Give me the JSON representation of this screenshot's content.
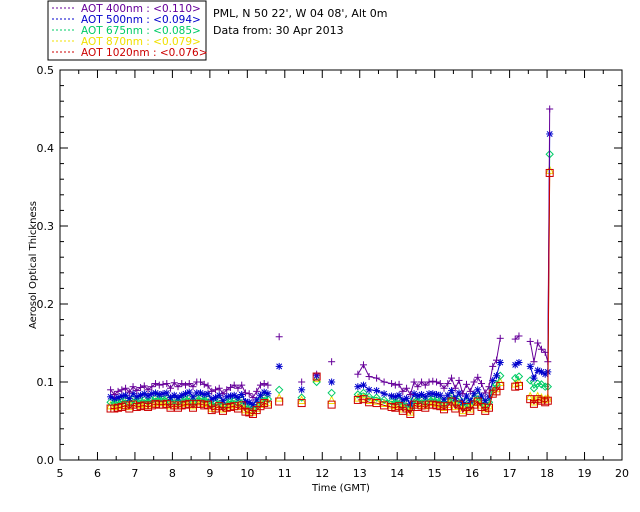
{
  "info": {
    "location": "PML, N 50 22', W 04 08', Alt 0m",
    "date": "Data from: 30 Apr 2013"
  },
  "chart_data": {
    "type": "line",
    "xlabel": "Time (GMT)",
    "ylabel": "Aerosol Optical Thickness",
    "xlim": [
      5,
      20
    ],
    "ylim": [
      0,
      0.5
    ],
    "x_ticks": [
      5,
      6,
      7,
      8,
      9,
      10,
      11,
      12,
      13,
      14,
      15,
      16,
      17,
      18,
      19,
      20
    ],
    "y_ticks": [
      0.0,
      0.1,
      0.2,
      0.3,
      0.4,
      0.5
    ],
    "y_tick_labels": [
      "0.0",
      "0.1",
      "0.2",
      "0.3",
      "0.4",
      "0.5"
    ],
    "grid": false,
    "legend_position": "top-left, outside plot",
    "x": [
      6.35,
      6.45,
      6.55,
      6.65,
      6.75,
      6.85,
      6.95,
      7.05,
      7.15,
      7.25,
      7.35,
      7.45,
      7.55,
      7.65,
      7.75,
      7.85,
      7.95,
      8.05,
      8.15,
      8.25,
      8.35,
      8.45,
      8.55,
      8.65,
      8.75,
      8.85,
      8.95,
      9.05,
      9.15,
      9.25,
      9.35,
      9.45,
      9.55,
      9.65,
      9.75,
      9.85,
      9.95,
      10.05,
      10.15,
      10.25,
      10.35,
      10.45,
      10.55,
      10.85,
      11.45,
      11.85,
      12.25,
      12.95,
      13.1,
      13.25,
      13.45,
      13.65,
      13.85,
      13.95,
      14.05,
      14.15,
      14.25,
      14.35,
      14.45,
      14.55,
      14.65,
      14.75,
      14.85,
      14.95,
      15.05,
      15.15,
      15.25,
      15.35,
      15.45,
      15.55,
      15.65,
      15.75,
      15.85,
      15.95,
      16.05,
      16.15,
      16.25,
      16.35,
      16.45,
      16.55,
      16.65,
      16.75,
      17.15,
      17.25,
      17.55,
      17.65,
      17.75,
      17.85,
      17.95,
      18.02,
      18.07
    ],
    "series": [
      {
        "name": "AOT  400nm : <0.110>",
        "color": "#66009a",
        "marker": "plus",
        "values": [
          0.09,
          0.084,
          0.088,
          0.09,
          0.092,
          0.087,
          0.094,
          0.089,
          0.093,
          0.095,
          0.09,
          0.094,
          0.098,
          0.096,
          0.097,
          0.098,
          0.092,
          0.099,
          0.094,
          0.098,
          0.096,
          0.098,
          0.094,
          0.1,
          0.1,
          0.097,
          0.095,
          0.088,
          0.09,
          0.092,
          0.085,
          0.09,
          0.093,
          0.096,
          0.092,
          0.096,
          0.086,
          0.085,
          0.08,
          0.088,
          0.096,
          0.098,
          0.096,
          0.158,
          0.1,
          0.11,
          0.126,
          0.11,
          0.122,
          0.107,
          0.105,
          0.1,
          0.098,
          0.096,
          0.097,
          0.088,
          0.092,
          0.084,
          0.1,
          0.094,
          0.1,
          0.096,
          0.1,
          0.101,
          0.1,
          0.098,
          0.092,
          0.098,
          0.105,
          0.092,
          0.102,
          0.085,
          0.097,
          0.088,
          0.1,
          0.106,
          0.098,
          0.086,
          0.094,
          0.12,
          0.128,
          0.156,
          0.155,
          0.159,
          0.152,
          0.126,
          0.15,
          0.142,
          0.138,
          0.126,
          0.45
        ]
      },
      {
        "name": "AOT  500nm : <0.094>",
        "color": "#0000cc",
        "marker": "asterisk",
        "values": [
          0.081,
          0.079,
          0.08,
          0.082,
          0.083,
          0.079,
          0.085,
          0.081,
          0.083,
          0.085,
          0.082,
          0.085,
          0.086,
          0.084,
          0.085,
          0.086,
          0.08,
          0.083,
          0.08,
          0.083,
          0.085,
          0.087,
          0.081,
          0.086,
          0.086,
          0.084,
          0.085,
          0.078,
          0.08,
          0.083,
          0.076,
          0.081,
          0.082,
          0.083,
          0.08,
          0.084,
          0.075,
          0.074,
          0.071,
          0.077,
          0.083,
          0.087,
          0.085,
          0.12,
          0.09,
          0.108,
          0.1,
          0.094,
          0.096,
          0.09,
          0.089,
          0.085,
          0.082,
          0.081,
          0.083,
          0.077,
          0.079,
          0.072,
          0.085,
          0.082,
          0.084,
          0.081,
          0.085,
          0.085,
          0.084,
          0.083,
          0.078,
          0.083,
          0.089,
          0.079,
          0.086,
          0.074,
          0.082,
          0.076,
          0.085,
          0.09,
          0.082,
          0.076,
          0.081,
          0.102,
          0.108,
          0.125,
          0.122,
          0.125,
          0.12,
          0.105,
          0.115,
          0.113,
          0.11,
          0.113,
          0.418
        ]
      },
      {
        "name": "AOT  675nm : <0.085>",
        "color": "#00cc66",
        "marker": "diamond",
        "values": [
          0.074,
          0.073,
          0.074,
          0.075,
          0.077,
          0.073,
          0.078,
          0.075,
          0.076,
          0.077,
          0.075,
          0.077,
          0.079,
          0.078,
          0.078,
          0.079,
          0.074,
          0.077,
          0.074,
          0.077,
          0.078,
          0.079,
          0.074,
          0.079,
          0.079,
          0.077,
          0.078,
          0.071,
          0.073,
          0.076,
          0.07,
          0.074,
          0.075,
          0.076,
          0.073,
          0.077,
          0.069,
          0.068,
          0.066,
          0.071,
          0.076,
          0.08,
          0.078,
          0.09,
          0.08,
          0.1,
          0.086,
          0.084,
          0.086,
          0.081,
          0.08,
          0.077,
          0.075,
          0.074,
          0.076,
          0.07,
          0.073,
          0.066,
          0.078,
          0.075,
          0.077,
          0.074,
          0.078,
          0.078,
          0.077,
          0.076,
          0.072,
          0.076,
          0.082,
          0.073,
          0.078,
          0.068,
          0.075,
          0.07,
          0.078,
          0.082,
          0.075,
          0.07,
          0.074,
          0.092,
          0.097,
          0.108,
          0.105,
          0.107,
          0.102,
          0.092,
          0.098,
          0.097,
          0.094,
          0.094,
          0.392
        ]
      },
      {
        "name": "AOT  870nm : <0.079>",
        "color": "#f0e000",
        "marker": "triangle",
        "values": [
          0.07,
          0.069,
          0.07,
          0.071,
          0.073,
          0.069,
          0.074,
          0.071,
          0.072,
          0.073,
          0.071,
          0.073,
          0.075,
          0.074,
          0.074,
          0.075,
          0.07,
          0.073,
          0.07,
          0.073,
          0.074,
          0.075,
          0.07,
          0.075,
          0.075,
          0.073,
          0.074,
          0.067,
          0.069,
          0.072,
          0.066,
          0.07,
          0.071,
          0.072,
          0.069,
          0.073,
          0.065,
          0.064,
          0.062,
          0.067,
          0.072,
          0.076,
          0.074,
          0.08,
          0.077,
          0.105,
          0.077,
          0.08,
          0.08,
          0.077,
          0.076,
          0.073,
          0.071,
          0.07,
          0.072,
          0.066,
          0.069,
          0.062,
          0.074,
          0.071,
          0.073,
          0.07,
          0.074,
          0.074,
          0.073,
          0.072,
          0.068,
          0.072,
          0.078,
          0.069,
          0.074,
          0.064,
          0.071,
          0.066,
          0.074,
          0.078,
          0.071,
          0.066,
          0.07,
          0.088,
          0.092,
          0.1,
          0.098,
          0.1,
          0.082,
          0.075,
          0.082,
          0.08,
          0.078,
          0.08,
          0.372
        ]
      },
      {
        "name": "AOT 1020nm : <0.076>",
        "color": "#cc0000",
        "marker": "square",
        "values": [
          0.066,
          0.066,
          0.067,
          0.068,
          0.07,
          0.066,
          0.071,
          0.068,
          0.069,
          0.07,
          0.068,
          0.07,
          0.072,
          0.071,
          0.071,
          0.072,
          0.067,
          0.07,
          0.067,
          0.07,
          0.071,
          0.072,
          0.067,
          0.072,
          0.072,
          0.07,
          0.071,
          0.064,
          0.066,
          0.069,
          0.063,
          0.067,
          0.068,
          0.069,
          0.066,
          0.07,
          0.062,
          0.061,
          0.059,
          0.064,
          0.069,
          0.073,
          0.071,
          0.075,
          0.073,
          0.107,
          0.071,
          0.077,
          0.078,
          0.074,
          0.073,
          0.07,
          0.068,
          0.067,
          0.069,
          0.063,
          0.066,
          0.059,
          0.071,
          0.068,
          0.07,
          0.067,
          0.071,
          0.071,
          0.07,
          0.069,
          0.065,
          0.069,
          0.075,
          0.066,
          0.071,
          0.061,
          0.068,
          0.063,
          0.071,
          0.075,
          0.068,
          0.063,
          0.067,
          0.085,
          0.088,
          0.095,
          0.094,
          0.095,
          0.078,
          0.072,
          0.078,
          0.076,
          0.074,
          0.076,
          0.368
        ]
      }
    ]
  }
}
